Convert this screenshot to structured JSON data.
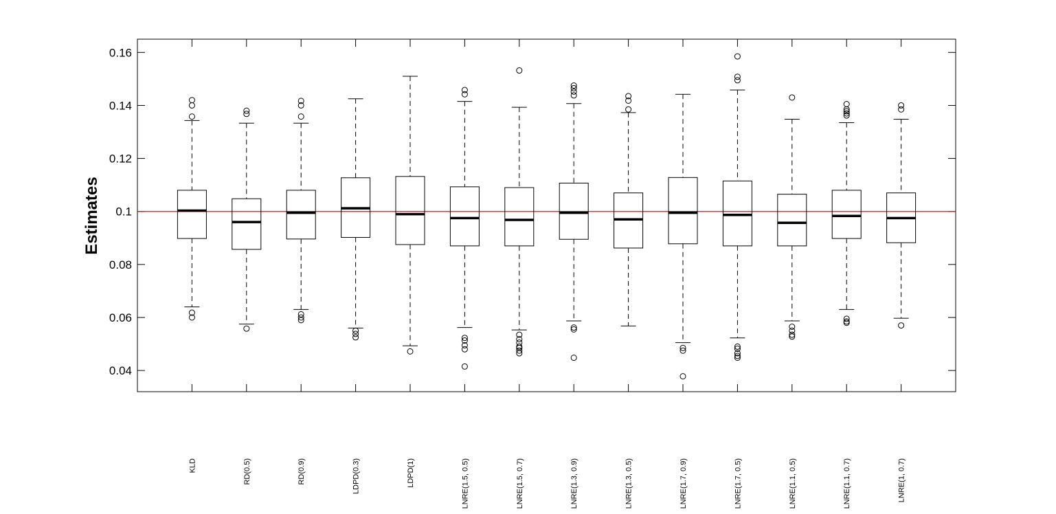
{
  "chart_data": {
    "type": "box",
    "title": "",
    "xlabel": "",
    "ylabel": "Estimates",
    "ylim": [
      0.032,
      0.165
    ],
    "yticks": [
      0.04,
      0.06,
      0.08,
      0.1,
      0.12,
      0.14,
      0.16
    ],
    "ytick_labels": [
      "0.04",
      "0.06",
      "0.08",
      "0.1",
      "0.12",
      "0.14",
      "0.16"
    ],
    "grid": false,
    "reference_line": {
      "y": 0.1,
      "color": "#ff0000"
    },
    "categories": [
      "KLD",
      "RD(0.5)",
      "RD(0.9)",
      "LDPD(0.3)",
      "LDPD(1)",
      "LNRE(1.5, 0.5)",
      "LNRE(1.5, 0.7)",
      "LNRE(1.3, 0.9)",
      "LNRE(1.3, 0.5)",
      "LNRE(1.7, 0.9)",
      "LNRE(1.7, 0.5)",
      "LNRE(1.1, 0.5)",
      "LNRE(1.1, 0.7)",
      "LNRE(1, 0.7)"
    ],
    "boxes": [
      {
        "whisker_low": 0.064,
        "q1": 0.0898,
        "median": 0.1003,
        "q3": 0.108,
        "whisker_high": 0.1343,
        "outliers": [
          0.06,
          0.0618,
          0.1358,
          0.14,
          0.142
        ]
      },
      {
        "whisker_low": 0.0575,
        "q1": 0.0857,
        "median": 0.096,
        "q3": 0.1048,
        "whisker_high": 0.1333,
        "outliers": [
          0.0558,
          0.1368,
          0.138
        ]
      },
      {
        "whisker_low": 0.063,
        "q1": 0.0896,
        "median": 0.0995,
        "q3": 0.108,
        "whisker_high": 0.1333,
        "outliers": [
          0.059,
          0.06,
          0.0612,
          0.1358,
          0.14,
          0.1417
        ]
      },
      {
        "whisker_low": 0.056,
        "q1": 0.0902,
        "median": 0.1012,
        "q3": 0.1127,
        "whisker_high": 0.1425,
        "outliers": [
          0.0525,
          0.0538,
          0.055
        ]
      },
      {
        "whisker_low": 0.0493,
        "q1": 0.0875,
        "median": 0.099,
        "q3": 0.1132,
        "whisker_high": 0.151,
        "outliers": [
          0.0472
        ]
      },
      {
        "whisker_low": 0.0562,
        "q1": 0.087,
        "median": 0.0975,
        "q3": 0.1093,
        "whisker_high": 0.1415,
        "outliers": [
          0.0415,
          0.048,
          0.0495,
          0.0513,
          0.0523,
          0.1442,
          0.1458
        ]
      },
      {
        "whisker_low": 0.0553,
        "q1": 0.087,
        "median": 0.0968,
        "q3": 0.109,
        "whisker_high": 0.1393,
        "outliers": [
          0.0465,
          0.0475,
          0.0485,
          0.049,
          0.0505,
          0.0518,
          0.0535,
          0.1532
        ]
      },
      {
        "whisker_low": 0.0587,
        "q1": 0.0895,
        "median": 0.0995,
        "q3": 0.1107,
        "whisker_high": 0.1407,
        "outliers": [
          0.0448,
          0.0555,
          0.0562,
          0.1438,
          0.1452,
          0.1465,
          0.1475
        ]
      },
      {
        "whisker_low": 0.0568,
        "q1": 0.0862,
        "median": 0.097,
        "q3": 0.107,
        "whisker_high": 0.1373,
        "outliers": [
          0.1385,
          0.1418,
          0.1435
        ]
      },
      {
        "whisker_low": 0.0505,
        "q1": 0.0878,
        "median": 0.0995,
        "q3": 0.1128,
        "whisker_high": 0.1442,
        "outliers": [
          0.0378,
          0.0475,
          0.0485
        ]
      },
      {
        "whisker_low": 0.0523,
        "q1": 0.087,
        "median": 0.0987,
        "q3": 0.1115,
        "whisker_high": 0.1458,
        "outliers": [
          0.0448,
          0.0455,
          0.0465,
          0.0482,
          0.049,
          0.1495,
          0.1508,
          0.1585
        ]
      },
      {
        "whisker_low": 0.0587,
        "q1": 0.087,
        "median": 0.0957,
        "q3": 0.1065,
        "whisker_high": 0.1348,
        "outliers": [
          0.0528,
          0.0535,
          0.055,
          0.0565,
          0.143
        ]
      },
      {
        "whisker_low": 0.063,
        "q1": 0.0898,
        "median": 0.0983,
        "q3": 0.108,
        "whisker_high": 0.1335,
        "outliers": [
          0.058,
          0.0585,
          0.0595,
          0.1362,
          0.137,
          0.1378,
          0.1385,
          0.1405
        ]
      },
      {
        "whisker_low": 0.0597,
        "q1": 0.0882,
        "median": 0.0975,
        "q3": 0.107,
        "whisker_high": 0.1348,
        "outliers": [
          0.057,
          0.1385,
          0.14
        ]
      }
    ]
  }
}
